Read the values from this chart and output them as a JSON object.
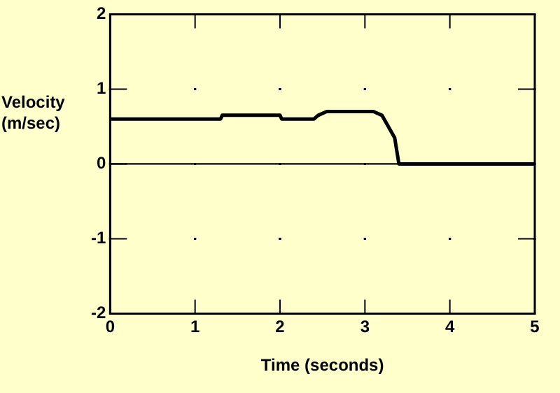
{
  "chart_data": {
    "type": "line",
    "xlabel": "Time (seconds)",
    "ylabel": "Velocity (m/sec)",
    "x": [
      0,
      1.3,
      1.32,
      2.0,
      2.02,
      2.4,
      2.45,
      2.55,
      3.1,
      3.2,
      3.3,
      3.35,
      3.4,
      5
    ],
    "series": [
      {
        "color": "#000000",
        "values": [
          0.6,
          0.6,
          0.65,
          0.65,
          0.6,
          0.6,
          0.65,
          0.7,
          0.7,
          0.65,
          0.45,
          0.35,
          0,
          0
        ]
      }
    ],
    "xlim": [
      0,
      5
    ],
    "xticks": [
      0,
      1,
      2,
      3,
      4,
      5
    ],
    "ylim": [
      -2,
      2
    ],
    "yticks": [
      -2,
      -1,
      0,
      1,
      2
    ],
    "ref_lines": [
      {
        "axis": "y",
        "value": 0,
        "color": "#000000"
      }
    ],
    "grid": true,
    "legend": false,
    "marker": "none",
    "line_style": "solid"
  }
}
